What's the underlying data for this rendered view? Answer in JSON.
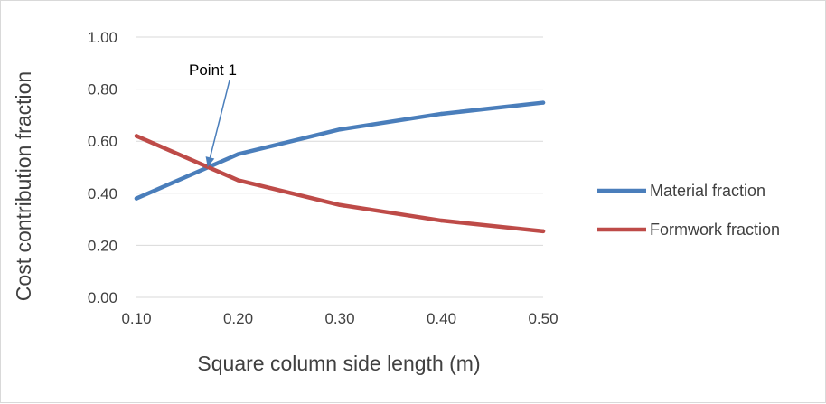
{
  "chart_data": {
    "type": "line",
    "title": "",
    "xlabel": "Square column side length (m)",
    "ylabel": "Cost contribution fraction",
    "x": [
      0.1,
      0.2,
      0.3,
      0.4,
      0.5
    ],
    "x_tick_labels": [
      "0.10",
      "0.20",
      "0.30",
      "0.40",
      "0.50"
    ],
    "y_tick_labels": [
      "0.00",
      "0.20",
      "0.40",
      "0.60",
      "0.80",
      "1.00"
    ],
    "xlim": [
      0.1,
      0.5
    ],
    "ylim": [
      0,
      1
    ],
    "grid": "horizontal",
    "legend_position": "right",
    "series": [
      {
        "name": "Material fraction",
        "color": "#4a7ebb",
        "values": [
          0.38,
          0.55,
          0.645,
          0.705,
          0.748
        ]
      },
      {
        "name": "Formwork fraction",
        "color": "#be4b48",
        "values": [
          0.62,
          0.45,
          0.355,
          0.295,
          0.254
        ]
      }
    ],
    "annotations": [
      {
        "text": "Point 1",
        "arrow_to": {
          "x": 0.17,
          "y": 0.5
        }
      }
    ]
  }
}
